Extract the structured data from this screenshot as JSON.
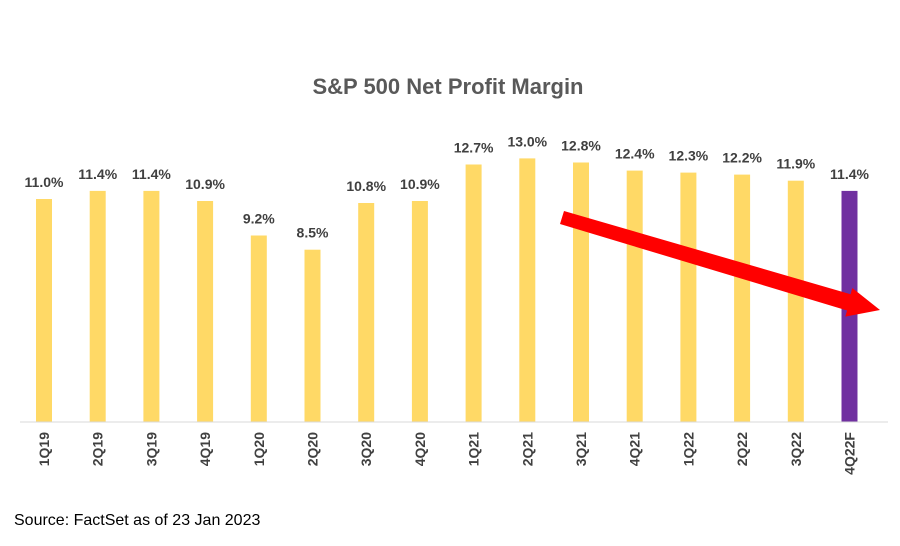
{
  "chart_data": {
    "type": "bar",
    "title": "S&P 500 Net Profit Margin",
    "xlabel": "",
    "ylabel": "",
    "categories": [
      "1Q19",
      "2Q19",
      "3Q19",
      "4Q19",
      "1Q20",
      "2Q20",
      "3Q20",
      "4Q20",
      "1Q21",
      "2Q21",
      "3Q21",
      "4Q21",
      "1Q22",
      "2Q22",
      "3Q22",
      "4Q22F"
    ],
    "values": [
      11.0,
      11.4,
      11.4,
      10.9,
      9.2,
      8.5,
      10.8,
      10.9,
      12.7,
      13.0,
      12.8,
      12.4,
      12.3,
      12.2,
      11.9,
      11.4
    ],
    "data_labels": [
      "11.0%",
      "11.4%",
      "11.4%",
      "10.9%",
      "9.2%",
      "8.5%",
      "10.8%",
      "10.9%",
      "12.7%",
      "13.0%",
      "12.8%",
      "12.4%",
      "12.3%",
      "12.2%",
      "11.9%",
      "11.4%"
    ],
    "ylim": [
      0,
      14.5
    ],
    "grid": false,
    "legend": "none",
    "colors": {
      "actual": "#FFD966",
      "forecast": "#7030A0",
      "trend_arrow": "#FF0000",
      "title": "#595959",
      "labels": "#404040"
    },
    "highlight_category": "4Q22F",
    "annotation": "downward trend arrow from 3Q21 to beyond 4Q22F"
  },
  "footer": {
    "source": "Source: FactSet as of 23 Jan 2023"
  }
}
